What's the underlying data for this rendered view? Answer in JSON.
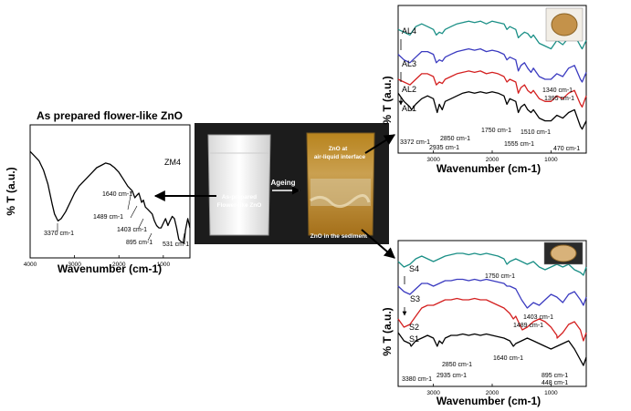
{
  "chart_data": [
    {
      "type": "line",
      "title": "As prepared flower-like ZnO",
      "xlabel": "Wavenumber (cm-1)",
      "ylabel": "% T (a.u.)",
      "x_ticks": [
        "4000",
        "3000",
        "2000",
        "1000"
      ],
      "xlim": [
        4000,
        400
      ],
      "series": [
        {
          "name": "ZM4",
          "color": "#000000",
          "x": [
            4000,
            3900,
            3800,
            3700,
            3600,
            3500,
            3450,
            3400,
            3370,
            3300,
            3200,
            3100,
            3000,
            2900,
            2800,
            2700,
            2600,
            2500,
            2400,
            2300,
            2200,
            2100,
            2000,
            1900,
            1800,
            1700,
            1640,
            1600,
            1550,
            1489,
            1450,
            1403,
            1350,
            1300,
            1250,
            1200,
            1150,
            1100,
            1050,
            1000,
            950,
            895,
            850,
            800,
            750,
            700,
            650,
            600,
            531,
            500,
            450,
            400
          ],
          "y": [
            88,
            84,
            80,
            72,
            60,
            42,
            34,
            30,
            28,
            30,
            36,
            44,
            52,
            58,
            62,
            66,
            70,
            74,
            76,
            78,
            77,
            74,
            70,
            64,
            58,
            54,
            48,
            50,
            52,
            44,
            46,
            40,
            38,
            36,
            34,
            28,
            24,
            22,
            22,
            26,
            30,
            24,
            28,
            32,
            30,
            22,
            12,
            10,
            9,
            20,
            30,
            22
          ]
        }
      ],
      "annotations": [
        "3370 cm-1",
        "1640 cm-1",
        "1489 cm-1",
        "1403 cm-1",
        "895 cm-1",
        "531 cm-1"
      ]
    },
    {
      "type": "line",
      "xlabel": "Wavenumber (cm-1)",
      "ylabel": "% T (a.u.)",
      "x_ticks": [
        "3000",
        "2000",
        "1000"
      ],
      "xlim": [
        3600,
        400
      ],
      "series": [
        {
          "name": "AL4",
          "color": "#1a8f86",
          "x": [
            3600,
            3500,
            3400,
            3300,
            3200,
            3100,
            3000,
            2950,
            2900,
            2850,
            2800,
            2700,
            2600,
            2500,
            2400,
            2300,
            2200,
            2100,
            2000,
            1900,
            1800,
            1750,
            1700,
            1600,
            1555,
            1510,
            1450,
            1395,
            1340,
            1300,
            1200,
            1100,
            1000,
            900,
            800,
            700,
            600,
            500,
            470,
            400
          ],
          "y": [
            86,
            84,
            82,
            88,
            90,
            88,
            86,
            82,
            84,
            83,
            86,
            88,
            90,
            91,
            92,
            91,
            92,
            90,
            92,
            91,
            90,
            86,
            88,
            86,
            80,
            82,
            84,
            83,
            80,
            82,
            76,
            74,
            72,
            78,
            75,
            80,
            82,
            74,
            72,
            78
          ]
        },
        {
          "name": "AL3",
          "color": "#3b3bc0",
          "x": [
            3600,
            3500,
            3400,
            3300,
            3200,
            3100,
            3000,
            2950,
            2900,
            2850,
            2800,
            2700,
            2600,
            2500,
            2400,
            2300,
            2200,
            2100,
            2000,
            1900,
            1800,
            1750,
            1700,
            1600,
            1555,
            1510,
            1450,
            1395,
            1340,
            1300,
            1200,
            1100,
            1000,
            900,
            800,
            700,
            600,
            500,
            470,
            400
          ],
          "y": [
            68,
            64,
            62,
            66,
            70,
            70,
            68,
            62,
            64,
            63,
            66,
            68,
            70,
            71,
            72,
            71,
            72,
            70,
            71,
            70,
            68,
            64,
            66,
            64,
            56,
            60,
            62,
            58,
            55,
            58,
            52,
            50,
            50,
            54,
            52,
            58,
            60,
            50,
            48,
            55
          ]
        },
        {
          "name": "AL2",
          "color": "#d42020",
          "x": [
            3600,
            3500,
            3400,
            3300,
            3200,
            3100,
            3000,
            2950,
            2900,
            2850,
            2800,
            2700,
            2600,
            2500,
            2400,
            2300,
            2200,
            2100,
            2000,
            1900,
            1800,
            1750,
            1700,
            1600,
            1555,
            1510,
            1450,
            1395,
            1340,
            1300,
            1200,
            1100,
            1000,
            900,
            800,
            700,
            600,
            500,
            470,
            400
          ],
          "y": [
            50,
            48,
            46,
            50,
            54,
            54,
            52,
            46,
            48,
            47,
            50,
            52,
            54,
            55,
            56,
            55,
            56,
            54,
            55,
            54,
            52,
            48,
            50,
            48,
            40,
            44,
            46,
            42,
            40,
            42,
            36,
            34,
            34,
            38,
            36,
            40,
            42,
            32,
            30,
            38
          ]
        },
        {
          "name": "AL1",
          "color": "#000000",
          "x": [
            3600,
            3500,
            3400,
            3372,
            3300,
            3200,
            3100,
            3000,
            2935,
            2900,
            2850,
            2800,
            2700,
            2600,
            2500,
            2400,
            2300,
            2200,
            2100,
            2000,
            1900,
            1800,
            1750,
            1700,
            1600,
            1555,
            1510,
            1450,
            1395,
            1340,
            1300,
            1200,
            1100,
            1000,
            900,
            800,
            700,
            600,
            500,
            470,
            400
          ],
          "y": [
            40,
            34,
            30,
            28,
            32,
            36,
            38,
            36,
            26,
            32,
            28,
            34,
            36,
            38,
            40,
            41,
            40,
            41,
            40,
            41,
            40,
            38,
            32,
            36,
            34,
            26,
            30,
            32,
            28,
            26,
            28,
            22,
            20,
            20,
            24,
            22,
            26,
            28,
            16,
            14,
            20
          ]
        }
      ],
      "annotations": [
        "3372 cm-1",
        "2935 cm-1",
        "2850 cm-1",
        "1750 cm-1",
        "1555 cm-1",
        "1510 cm-1",
        "1395 cm-1",
        "1340 cm-1",
        "470 cm-1"
      ]
    },
    {
      "type": "line",
      "xlabel": "Wavenumber (cm-1)",
      "ylabel": "% T (a.u.)",
      "x_ticks": [
        "3000",
        "2000",
        "1000"
      ],
      "xlim": [
        3600,
        400
      ],
      "series": [
        {
          "name": "S4",
          "color": "#1a8f86",
          "x": [
            3600,
            3500,
            3400,
            3300,
            3200,
            3100,
            3000,
            2900,
            2800,
            2700,
            2600,
            2500,
            2400,
            2300,
            2200,
            2100,
            2000,
            1900,
            1800,
            1750,
            1700,
            1600,
            1500,
            1403,
            1300,
            1200,
            1100,
            1000,
            900,
            800,
            700,
            600,
            500,
            448,
            400
          ],
          "y": [
            88,
            84,
            86,
            90,
            92,
            90,
            88,
            90,
            92,
            93,
            94,
            94,
            93,
            94,
            93,
            94,
            93,
            92,
            90,
            86,
            88,
            90,
            88,
            86,
            88,
            84,
            82,
            84,
            86,
            84,
            86,
            82,
            80,
            78,
            84
          ]
        },
        {
          "name": "S3",
          "color": "#3b3bc0",
          "x": [
            3600,
            3500,
            3400,
            3300,
            3200,
            3100,
            3000,
            2900,
            2800,
            2700,
            2600,
            2500,
            2400,
            2300,
            2200,
            2100,
            2000,
            1900,
            1800,
            1750,
            1700,
            1600,
            1500,
            1403,
            1300,
            1200,
            1100,
            1000,
            900,
            800,
            700,
            600,
            500,
            448,
            400
          ],
          "y": [
            70,
            66,
            64,
            68,
            72,
            72,
            70,
            72,
            74,
            74,
            75,
            75,
            74,
            75,
            74,
            75,
            74,
            73,
            72,
            70,
            70,
            68,
            60,
            54,
            58,
            56,
            60,
            64,
            62,
            58,
            64,
            66,
            60,
            56,
            62
          ]
        },
        {
          "name": "S2",
          "color": "#d42020",
          "x": [
            3600,
            3500,
            3400,
            3300,
            3200,
            3100,
            3000,
            2900,
            2800,
            2700,
            2600,
            2500,
            2400,
            2300,
            2200,
            2100,
            2000,
            1900,
            1800,
            1750,
            1700,
            1640,
            1600,
            1489,
            1403,
            1300,
            1200,
            1100,
            1000,
            900,
            895,
            800,
            700,
            600,
            500,
            448,
            400
          ],
          "y": [
            46,
            40,
            42,
            48,
            54,
            56,
            56,
            58,
            60,
            60,
            61,
            60,
            60,
            61,
            60,
            60,
            58,
            56,
            54,
            52,
            50,
            46,
            48,
            38,
            40,
            44,
            46,
            44,
            40,
            34,
            32,
            36,
            42,
            44,
            38,
            30,
            36
          ]
        },
        {
          "name": "S1",
          "color": "#000000",
          "x": [
            3600,
            3500,
            3400,
            3380,
            3300,
            3200,
            3100,
            3000,
            2935,
            2900,
            2850,
            2800,
            2700,
            2600,
            2500,
            2400,
            2300,
            2200,
            2100,
            2000,
            1900,
            1800,
            1700,
            1640,
            1600,
            1500,
            1403,
            1300,
            1200,
            1100,
            1000,
            900,
            800,
            700,
            600,
            500,
            448,
            400
          ],
          "y": [
            36,
            30,
            28,
            26,
            30,
            32,
            34,
            32,
            26,
            30,
            28,
            32,
            34,
            34,
            35,
            34,
            35,
            34,
            35,
            34,
            33,
            32,
            30,
            26,
            28,
            30,
            32,
            30,
            28,
            26,
            24,
            26,
            28,
            30,
            24,
            16,
            12,
            18
          ]
        }
      ],
      "annotations": [
        "3380 cm-1",
        "2935 cm-1",
        "2850 cm-1",
        "1640 cm-1",
        "1750 cm-1",
        "1489 cm-1",
        "1403 cm-1",
        "895 cm-1",
        "448 cm-1"
      ]
    }
  ],
  "photo": {
    "label_left": "As-prepared\nFlower-like ZnO",
    "label_ageing": "Ageing",
    "label_interface": "ZnO at\nair-liquid interface",
    "label_sediment": "ZnO in the sediment"
  },
  "colors": {
    "teal": "#1a8f86",
    "blue": "#3b3bc0",
    "red": "#d42020",
    "black": "#000000"
  }
}
